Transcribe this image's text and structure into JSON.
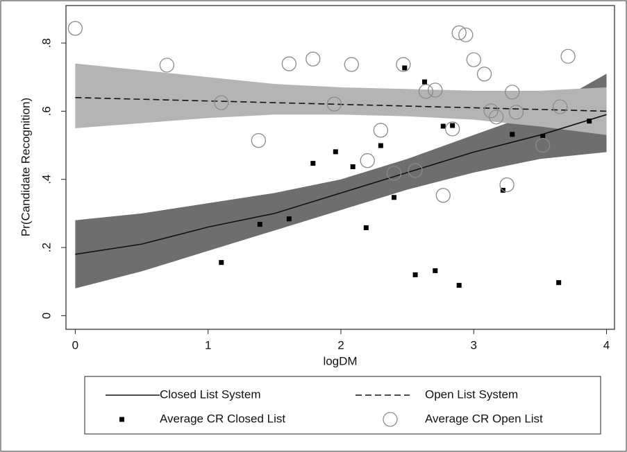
{
  "chart_data": {
    "type": "scatter",
    "x_label": "logDM",
    "y_label": "Pr(Candidate Recognition)",
    "xlim": [
      -0.07,
      4.06
    ],
    "ylim": [
      -0.04,
      0.91
    ],
    "xticks": [
      0,
      1,
      2,
      3,
      4
    ],
    "yticks": [
      {
        "value": 0,
        "label": "0"
      },
      {
        "value": 0.2,
        "label": ".2"
      },
      {
        "value": 0.4,
        "label": ".4"
      },
      {
        "value": 0.6,
        "label": ".6"
      },
      {
        "value": 0.8,
        "label": ".8"
      }
    ],
    "grid": false,
    "series": [
      {
        "name": "Closed List System",
        "style": "line",
        "color": "#111111",
        "band_color": "#6e6e6e",
        "x": [
          0,
          0.5,
          1,
          1.5,
          2,
          2.5,
          3,
          3.5,
          4
        ],
        "values": [
          0.18,
          0.21,
          0.26,
          0.3,
          0.36,
          0.42,
          0.48,
          0.53,
          0.59
        ],
        "lower": [
          0.08,
          0.13,
          0.19,
          0.25,
          0.31,
          0.37,
          0.42,
          0.46,
          0.48
        ],
        "upper": [
          0.28,
          0.3,
          0.33,
          0.36,
          0.4,
          0.46,
          0.53,
          0.6,
          0.71
        ]
      },
      {
        "name": "Open List System",
        "style": "dashed",
        "color": "#111111",
        "band_color": "#b4b4b4",
        "x": [
          0,
          0.5,
          1,
          1.5,
          2,
          2.5,
          3,
          3.5,
          4
        ],
        "values": [
          0.64,
          0.635,
          0.63,
          0.625,
          0.62,
          0.615,
          0.61,
          0.605,
          0.6
        ],
        "lower": [
          0.55,
          0.565,
          0.58,
          0.59,
          0.59,
          0.585,
          0.575,
          0.555,
          0.53
        ],
        "upper": [
          0.74,
          0.72,
          0.7,
          0.68,
          0.67,
          0.665,
          0.66,
          0.66,
          0.67
        ]
      },
      {
        "name": "Average CR Closed List",
        "style": "square",
        "color": "#000000",
        "x": [
          1.1,
          1.39,
          1.61,
          1.79,
          1.96,
          2.09,
          2.19,
          2.3,
          2.4,
          2.48,
          2.56,
          2.63,
          2.71,
          2.77,
          2.84,
          2.89,
          3.22,
          3.29,
          3.52,
          3.64,
          3.87
        ],
        "values": [
          0.156,
          0.268,
          0.284,
          0.447,
          0.481,
          0.437,
          0.258,
          0.499,
          0.347,
          0.727,
          0.12,
          0.686,
          0.132,
          0.556,
          0.558,
          0.089,
          0.368,
          0.532,
          0.526,
          0.097,
          0.571
        ]
      },
      {
        "name": "Average CR Open List",
        "style": "circle",
        "color": "#8a8a8a",
        "x": [
          0,
          0.69,
          1.1,
          1.38,
          1.61,
          1.79,
          1.95,
          2.08,
          2.2,
          2.3,
          2.4,
          2.47,
          2.56,
          2.64,
          2.71,
          2.77,
          2.84,
          2.89,
          2.94,
          3.0,
          3.08,
          3.13,
          3.17,
          3.25,
          3.29,
          3.32,
          3.52,
          3.65,
          3.71
        ],
        "values": [
          0.843,
          0.735,
          0.625,
          0.514,
          0.739,
          0.753,
          0.621,
          0.737,
          0.455,
          0.544,
          0.418,
          0.737,
          0.426,
          0.658,
          0.662,
          0.353,
          0.548,
          0.83,
          0.824,
          0.751,
          0.709,
          0.601,
          0.583,
          0.384,
          0.656,
          0.597,
          0.5,
          0.613,
          0.761
        ]
      }
    ]
  }
}
